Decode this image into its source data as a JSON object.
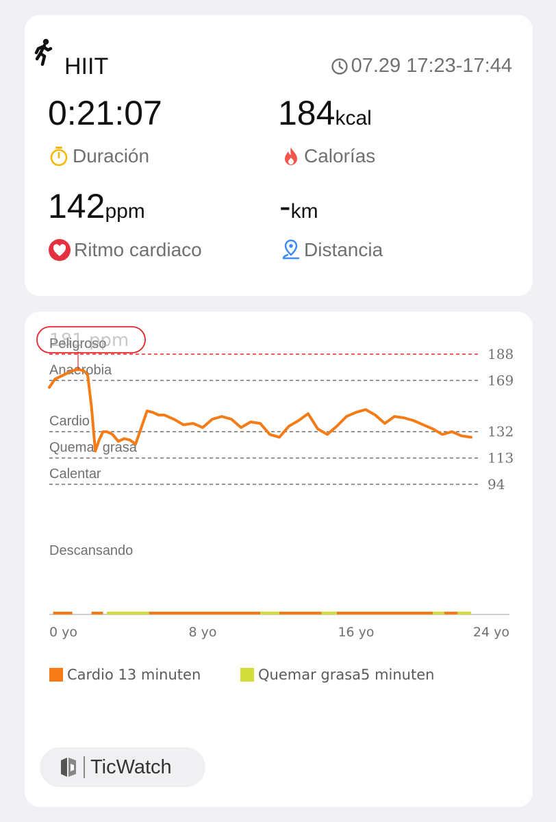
{
  "workout": {
    "activity": "HIIT",
    "datetime": "07.29 17:23-17:44",
    "icon": "running-person-icon"
  },
  "stats": {
    "duration": {
      "value": "0:21:07",
      "unit": "",
      "label": "Duración",
      "icon": "stopwatch-icon",
      "color": "#F5B800"
    },
    "calories": {
      "value": "184",
      "unit": "kcal",
      "label": "Calorías",
      "icon": "flame-icon",
      "color": "#F2554E"
    },
    "heart_rate": {
      "value": "142",
      "unit": "ppm",
      "label": "Ritmo cardiaco",
      "icon": "heart-icon",
      "color": "#E5303F"
    },
    "distance": {
      "value": "-",
      "unit": "km",
      "label": "Distancia",
      "icon": "location-pin-icon",
      "color": "#3D8BF2"
    }
  },
  "chart_data": {
    "type": "line",
    "peak_label": "181 ppm",
    "x_ticks": [
      "0 yo",
      "8 yo",
      "16 yo",
      "24 yo"
    ],
    "xlim": [
      0,
      24
    ],
    "ylim": [
      94,
      188
    ],
    "zones": [
      {
        "name": "Peligroso",
        "threshold": 188,
        "color": "#E8262A"
      },
      {
        "name": "Anaerobia",
        "threshold": 169,
        "color": "#707070"
      },
      {
        "name": "Cardio",
        "threshold": 132,
        "color": "#707070"
      },
      {
        "name": "Quemar grasa",
        "threshold": 113,
        "color": "#707070"
      },
      {
        "name": "Calentar",
        "threshold": 94,
        "color": "#707070"
      },
      {
        "name": "Descansando",
        "threshold": null,
        "color": "#707070"
      }
    ],
    "series": [
      {
        "color": "#F47B16",
        "x": [
          0,
          0.3,
          0.6,
          0.9,
          1.2,
          1.5,
          1.8,
          2.0,
          2.2,
          2.4,
          2.6,
          2.8,
          3.0,
          3.3,
          3.6,
          3.9,
          4.2,
          4.5,
          4.8,
          5.1,
          5.4,
          5.7,
          6.0,
          6.5,
          7.0,
          7.5,
          8.0,
          8.5,
          9.0,
          9.5,
          10.0,
          10.5,
          11.0,
          11.5,
          12.0,
          12.5,
          13.0,
          13.5,
          14.0,
          14.5,
          15.0,
          15.5,
          16.0,
          16.5,
          17.0,
          17.5,
          18.0,
          18.5,
          19.0,
          19.5,
          20.0,
          20.5,
          21.0,
          21.5,
          22.0
        ],
        "y": [
          164,
          170,
          172,
          174,
          176,
          177,
          176,
          173,
          150,
          118,
          126,
          132,
          132,
          130,
          125,
          127,
          126,
          123,
          135,
          147,
          146,
          144,
          144,
          141,
          137,
          138,
          135,
          141,
          143,
          141,
          135,
          139,
          138,
          130,
          128,
          136,
          140,
          145,
          134,
          130,
          136,
          143,
          146,
          148,
          144,
          138,
          143,
          142,
          140,
          137,
          134,
          130,
          132,
          129,
          128
        ]
      }
    ],
    "bar_segments": [
      {
        "zone": "Cardio",
        "start": 0.2,
        "end": 1.2,
        "color": "#F47B16"
      },
      {
        "zone": "Cardio",
        "start": 2.2,
        "end": 2.8,
        "color": "#F47B16"
      },
      {
        "zone": "Quemar grasa",
        "start": 3.0,
        "end": 5.2,
        "color": "#D2DC3A"
      },
      {
        "zone": "Cardio",
        "start": 5.2,
        "end": 8.5,
        "color": "#F47B16"
      },
      {
        "zone": "Cardio",
        "start": 8.5,
        "end": 11.0,
        "color": "#F47B16"
      },
      {
        "zone": "Quemar grasa",
        "start": 11.0,
        "end": 12.0,
        "color": "#D2DC3A"
      },
      {
        "zone": "Cardio",
        "start": 12.0,
        "end": 14.2,
        "color": "#F47B16"
      },
      {
        "zone": "Quemar grasa",
        "start": 14.2,
        "end": 15.0,
        "color": "#D2DC3A"
      },
      {
        "zone": "Cardio",
        "start": 15.0,
        "end": 20.0,
        "color": "#F47B16"
      },
      {
        "zone": "Quemar grasa",
        "start": 20.0,
        "end": 20.6,
        "color": "#D2DC3A"
      },
      {
        "zone": "Cardio",
        "start": 20.6,
        "end": 21.3,
        "color": "#F47B16"
      },
      {
        "zone": "Quemar grasa",
        "start": 21.3,
        "end": 22.0,
        "color": "#D2DC3A"
      }
    ],
    "legend": [
      {
        "label": "Cardio 13 minuten",
        "color": "#F47B16"
      },
      {
        "label": "Quemar grasa5 minuten",
        "color": "#D2DC3A"
      }
    ]
  },
  "brand": {
    "name": "TicWatch",
    "icon": "ticwatch-logo-icon"
  }
}
